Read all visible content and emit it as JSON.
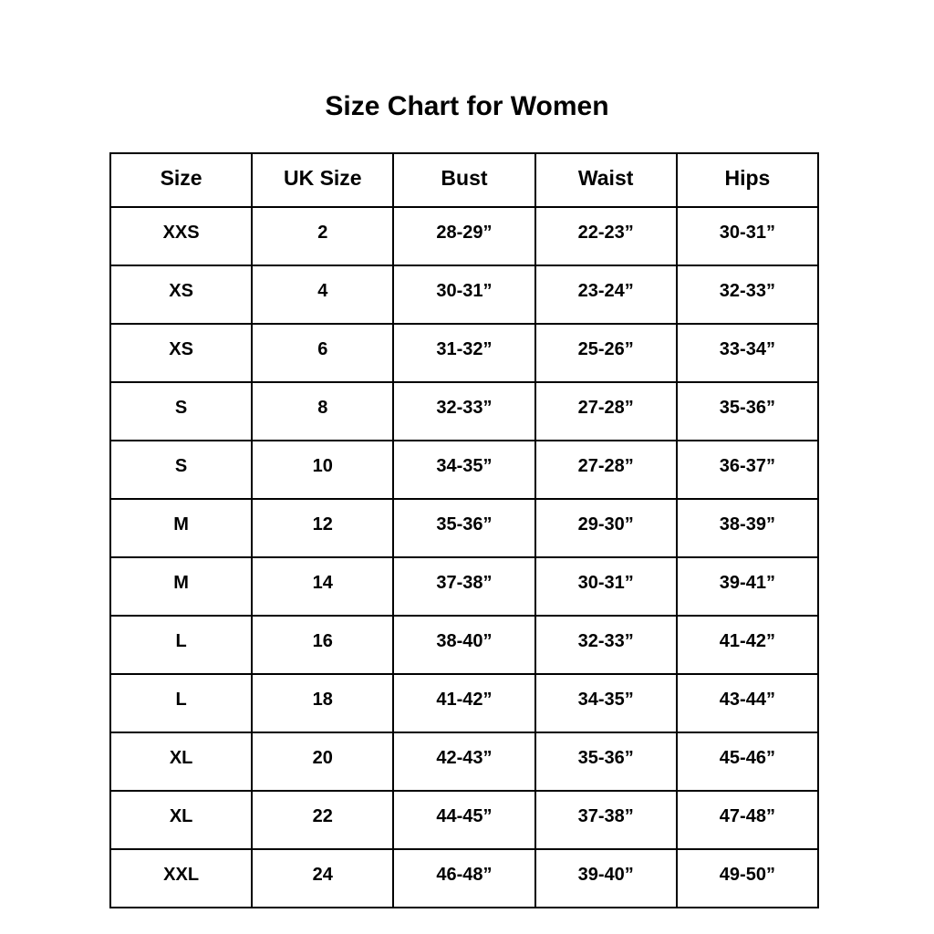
{
  "page": {
    "title": "Size Chart for Women"
  },
  "chart_data": {
    "type": "table",
    "title": "Size Chart for Women",
    "columns": [
      "Size",
      "UK Size",
      "Bust",
      "Waist",
      "Hips"
    ],
    "rows": [
      [
        "XXS",
        "2",
        "28-29”",
        "22-23”",
        "30-31”"
      ],
      [
        "XS",
        "4",
        "30-31”",
        "23-24”",
        "32-33”"
      ],
      [
        "XS",
        "6",
        "31-32”",
        "25-26”",
        "33-34”"
      ],
      [
        "S",
        "8",
        "32-33”",
        "27-28”",
        "35-36”"
      ],
      [
        "S",
        "10",
        "34-35”",
        "27-28”",
        "36-37”"
      ],
      [
        "M",
        "12",
        "35-36”",
        "29-30”",
        "38-39”"
      ],
      [
        "M",
        "14",
        "37-38”",
        "30-31”",
        "39-41”"
      ],
      [
        "L",
        "16",
        "38-40”",
        "32-33”",
        "41-42”"
      ],
      [
        "L",
        "18",
        "41-42”",
        "34-35”",
        "43-44”"
      ],
      [
        "XL",
        "20",
        "42-43”",
        "35-36”",
        "45-46”"
      ],
      [
        "XL",
        "22",
        "44-45”",
        "37-38”",
        "47-48”"
      ],
      [
        "XXL",
        "24",
        "46-48”",
        "39-40”",
        "49-50”"
      ]
    ],
    "layout": {
      "text_color": "#000000",
      "border_color": "#000000",
      "background": "#ffffff",
      "grid": true,
      "legend": false
    }
  }
}
